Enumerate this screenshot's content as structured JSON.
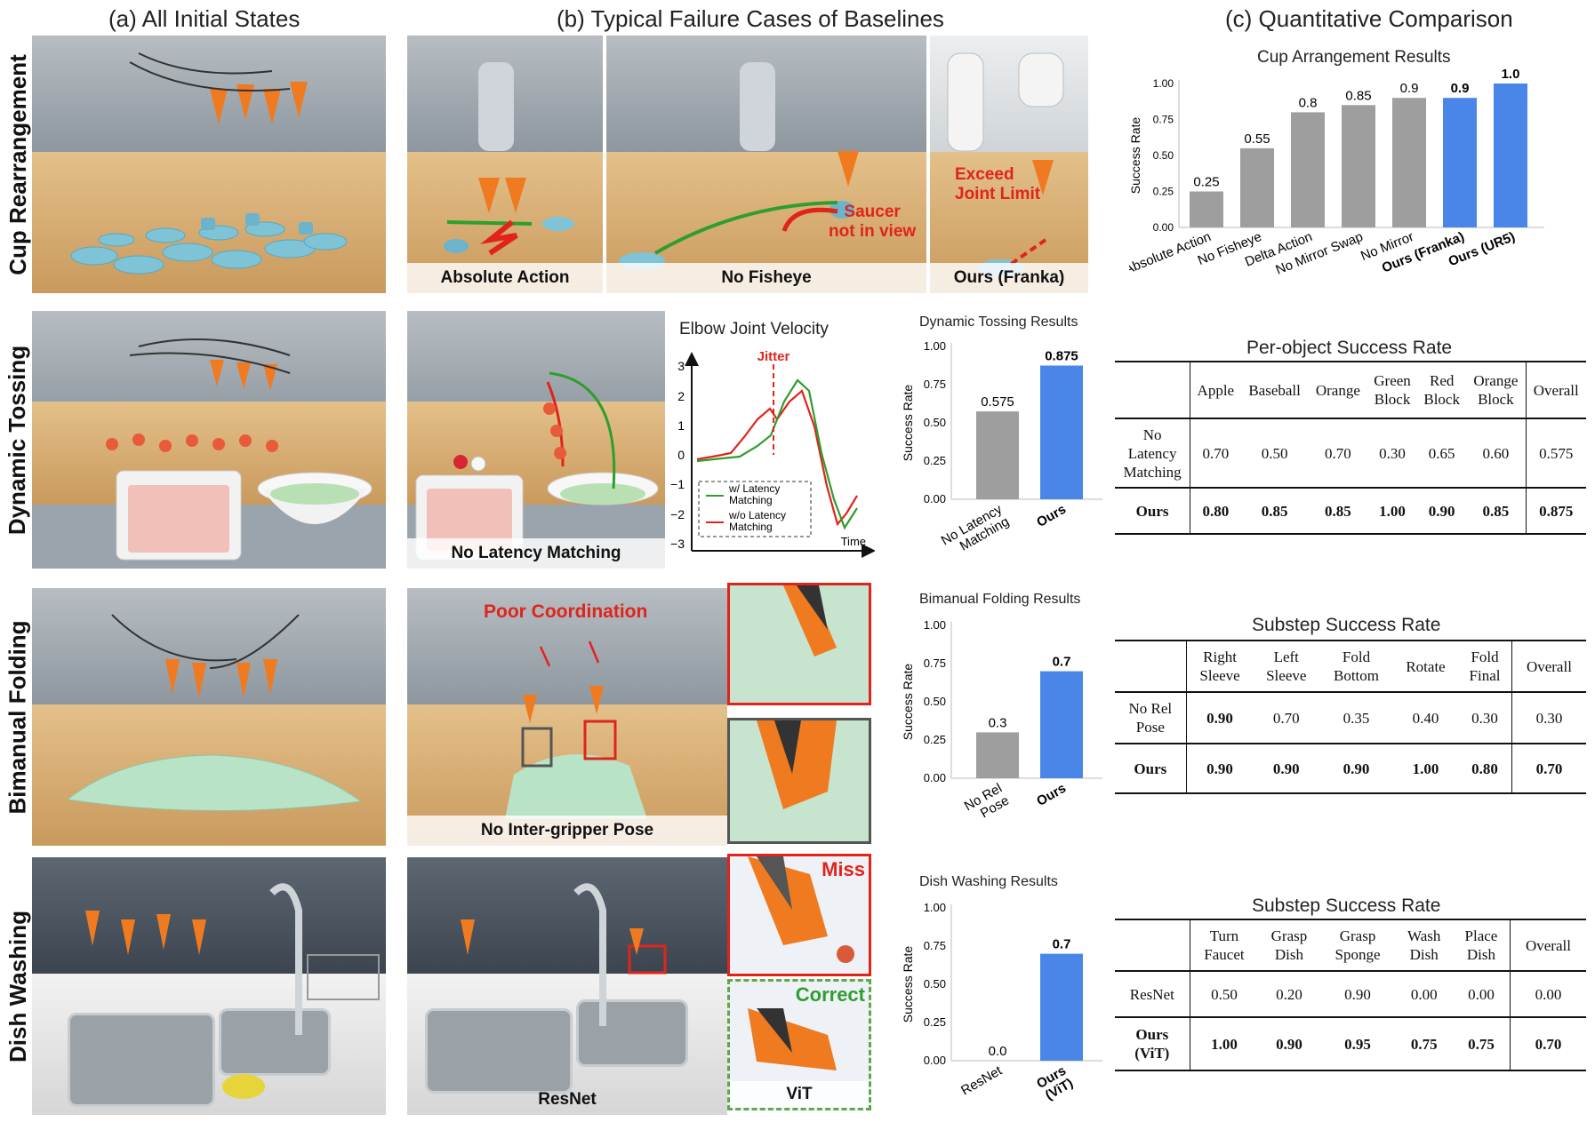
{
  "sections": {
    "a": "(a) All Initial States",
    "b": "(b) Typical Failure Cases of Baselines",
    "c": "(c) Quantitative Comparison"
  },
  "rows": [
    "Cup Rearrangement",
    "Dynamic Tossing",
    "Bimanual Folding",
    "Dish Washing"
  ],
  "captions": {
    "cup1": "Absolute Action",
    "cup2": "No Fisheye",
    "cup3": "Ours (Franka)",
    "toss": "No Latency Matching",
    "fold": "No Inter-gripper Pose",
    "dish1": "ResNet",
    "dish2": "ViT"
  },
  "annotations": {
    "saucer": "Saucer\nnot in view",
    "joint": "Exceed\nJoint Limit",
    "poor": "Poor Coordination",
    "miss": "Miss",
    "correct": "Correct"
  },
  "elbow_plot": {
    "title": "Elbow Joint Velocity",
    "jitter": "Jitter",
    "xlabel": "Time",
    "yticks": [
      "3",
      "2",
      "1",
      "0",
      "−1",
      "−2",
      "−3"
    ],
    "legend": [
      "w/ Latency\nMatching",
      "w/o Latency\nMatching"
    ],
    "colors": [
      "#2e9e2e",
      "#e0241b"
    ]
  },
  "colors": {
    "gray": "#9e9e9e",
    "blue": "#4a86e8",
    "red": "#e0241b",
    "green": "#2e9e2e",
    "orange": "#f07a1f"
  },
  "chart_data": [
    {
      "type": "bar",
      "title": "Cup Arrangement Results",
      "ylabel": "Success Rate",
      "categories": [
        "Absolute Action",
        "No Fisheye",
        "Delta Action",
        "No Mirror Swap",
        "No Mirror",
        "Ours (Franka)",
        "Ours (UR5)"
      ],
      "values": [
        0.25,
        0.55,
        0.8,
        0.85,
        0.9,
        0.9,
        1.0
      ],
      "labels": [
        "0.25",
        "0.55",
        "0.8",
        "0.85",
        "0.9",
        "0.9",
        "1.0"
      ],
      "highlight": [
        false,
        false,
        false,
        false,
        false,
        true,
        true
      ],
      "yticks": [
        "0.00",
        "0.25",
        "0.50",
        "0.75",
        "1.00"
      ],
      "ylim": [
        0,
        1
      ]
    },
    {
      "type": "bar",
      "title": "Dynamic Tossing Results",
      "ylabel": "Success Rate",
      "categories": [
        "No Latency\nMatching",
        "Ours"
      ],
      "values": [
        0.575,
        0.875
      ],
      "labels": [
        "0.575",
        "0.875"
      ],
      "highlight": [
        false,
        true
      ],
      "yticks": [
        "0.00",
        "0.25",
        "0.50",
        "0.75",
        "1.00"
      ],
      "ylim": [
        0,
        1
      ]
    },
    {
      "type": "bar",
      "title": "Bimanual Folding Results",
      "ylabel": "Success Rate",
      "categories": [
        "No Rel\nPose",
        "Ours"
      ],
      "values": [
        0.3,
        0.7
      ],
      "labels": [
        "0.3",
        "0.7"
      ],
      "highlight": [
        false,
        true
      ],
      "yticks": [
        "0.00",
        "0.25",
        "0.50",
        "0.75",
        "1.00"
      ],
      "ylim": [
        0,
        1
      ]
    },
    {
      "type": "bar",
      "title": "Dish Washing Results",
      "ylabel": "Success Rate",
      "categories": [
        "ResNet",
        "Ours\n(ViT)"
      ],
      "values": [
        0.0,
        0.7
      ],
      "labels": [
        "0.0",
        "0.7"
      ],
      "highlight": [
        false,
        true
      ],
      "yticks": [
        "0.00",
        "0.25",
        "0.50",
        "0.75",
        "1.00"
      ],
      "ylim": [
        0,
        1
      ]
    }
  ],
  "tables": {
    "toss": {
      "title": "Per-object Success Rate",
      "header": [
        "",
        "Apple",
        "Baseball",
        "Orange",
        "Green\nBlock",
        "Red\nBlock",
        "Orange\nBlock",
        "Overall"
      ],
      "rows": [
        [
          "No\nLatency\nMatching",
          "0.70",
          "0.50",
          "0.70",
          "0.30",
          "0.65",
          "0.60",
          "0.575"
        ],
        [
          "Ours",
          "0.80",
          "0.85",
          "0.85",
          "1.00",
          "0.90",
          "0.85",
          "0.875"
        ]
      ]
    },
    "fold": {
      "title": "Substep Success Rate",
      "header": [
        "",
        "Right\nSleeve",
        "Left\nSleeve",
        "Fold\nBottom",
        "Rotate",
        "Fold\nFinal",
        "Overall"
      ],
      "rows": [
        [
          "No Rel\nPose",
          "0.90",
          "0.70",
          "0.35",
          "0.40",
          "0.30",
          "0.30"
        ],
        [
          "Ours",
          "0.90",
          "0.90",
          "0.90",
          "1.00",
          "0.80",
          "0.70"
        ]
      ]
    },
    "dish": {
      "title": "Substep Success Rate",
      "header": [
        "",
        "Turn\nFaucet",
        "Grasp\nDish",
        "Grasp\nSponge",
        "Wash\nDish",
        "Place\nDish",
        "Overall"
      ],
      "rows": [
        [
          "ResNet",
          "0.50",
          "0.20",
          "0.90",
          "0.00",
          "0.00",
          "0.00"
        ],
        [
          "Ours\n(ViT)",
          "1.00",
          "0.90",
          "0.95",
          "0.75",
          "0.75",
          "0.70"
        ]
      ]
    }
  }
}
